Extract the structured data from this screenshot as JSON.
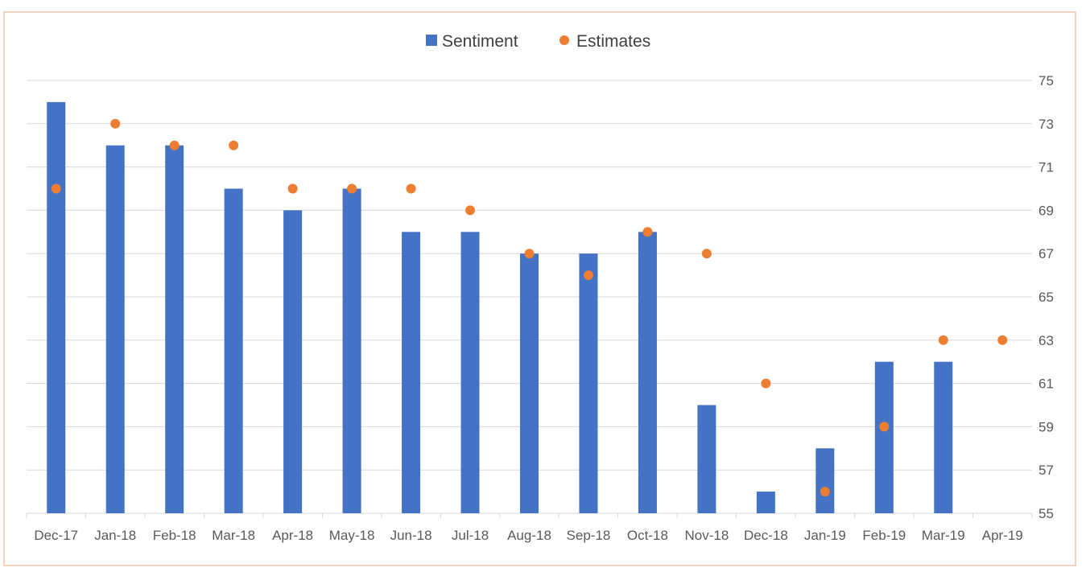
{
  "chart_data": {
    "type": "bar",
    "categories": [
      "Dec-17",
      "Jan-18",
      "Feb-18",
      "Mar-18",
      "Apr-18",
      "May-18",
      "Jun-18",
      "Jul-18",
      "Aug-18",
      "Sep-18",
      "Oct-18",
      "Nov-18",
      "Dec-18",
      "Jan-19",
      "Feb-19",
      "Mar-19",
      "Apr-19"
    ],
    "series": [
      {
        "name": "Sentiment",
        "kind": "bar",
        "color": "#4472c4",
        "values": [
          74,
          72,
          72,
          70,
          69,
          70,
          68,
          68,
          67,
          67,
          68,
          60,
          56,
          58,
          62,
          62,
          null
        ]
      },
      {
        "name": "Estimates",
        "kind": "scatter",
        "color": "#ed7d31",
        "values": [
          70,
          73,
          72,
          72,
          70,
          70,
          70,
          69,
          67,
          66,
          68,
          67,
          61,
          56,
          59,
          63,
          63
        ]
      }
    ],
    "title": "",
    "xlabel": "",
    "ylabel": "",
    "ylim": [
      55,
      75
    ],
    "yticks": [
      55,
      57,
      59,
      61,
      63,
      65,
      67,
      69,
      71,
      73,
      75
    ],
    "y_axis_side": "right",
    "grid": true,
    "legend_position": "top-center"
  },
  "colors": {
    "gridline": "#d9d9d9",
    "frame": "#f3d3c2"
  }
}
